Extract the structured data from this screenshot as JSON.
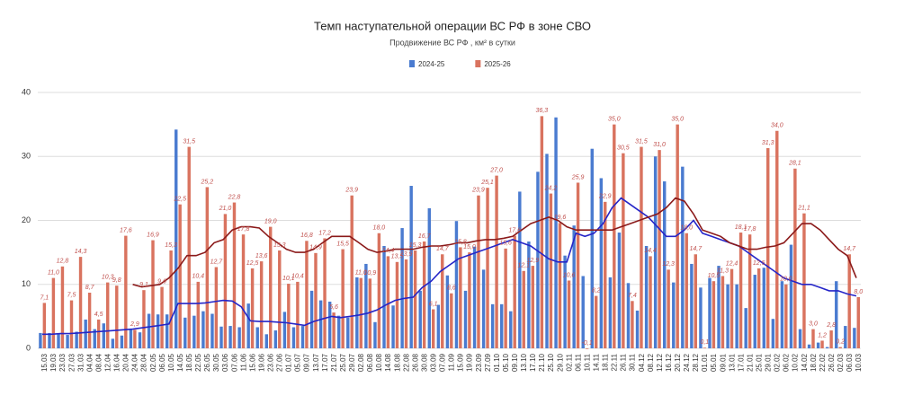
{
  "chart_data": {
    "type": "bar",
    "title": "Темп наступательной операции ВС РФ в зоне СВО",
    "subtitle": "Продвижение ВС РФ , км² в сутки",
    "categories": [
      "15.03",
      "19.03",
      "23.03",
      "27.03",
      "31.03",
      "04.04",
      "08.04",
      "12.04",
      "16.04",
      "20.04",
      "24.04",
      "28.04",
      "02.05",
      "06.05",
      "10.05",
      "14.05",
      "18.05",
      "22.05",
      "26.05",
      "30.05",
      "03.06",
      "07.06",
      "11.06",
      "15.06",
      "19.06",
      "23.06",
      "27.06",
      "01.07",
      "05.07",
      "09.07",
      "13.07",
      "17.07",
      "21.07",
      "25.07",
      "29.07",
      "02.08",
      "06.08",
      "10.08",
      "14.08",
      "18.08",
      "22.08",
      "26.08",
      "30.08",
      "03.09",
      "07.09",
      "11.09",
      "15.09",
      "19.09",
      "23.09",
      "27.09",
      "01.10",
      "05.10",
      "09.10",
      "13.10",
      "17.10",
      "21.10",
      "25.10",
      "29.10",
      "02.11",
      "06.11",
      "10.11",
      "14.11",
      "18.11",
      "22.11",
      "26.11",
      "30.11",
      "04.12",
      "08.12",
      "12.12",
      "16.12",
      "20.12",
      "24.12",
      "28.12",
      "01.01",
      "05.01",
      "09.01",
      "13.01",
      "17.01",
      "21.01",
      "25.01",
      "29.01",
      "02.02",
      "06.02",
      "10.02",
      "14.02",
      "18.02",
      "22.02",
      "26.02",
      "02.03",
      "06.03",
      "10.03"
    ],
    "series": [
      {
        "name": "2024-25",
        "type": "bar",
        "color": "#4a7bd0",
        "values": [
          2.4,
          2.4,
          2.3,
          2.1,
          2.6,
          4.5,
          3.0,
          3.9,
          1.5,
          2.0,
          3.0,
          2.5,
          5.4,
          5.3,
          5.3,
          34.2,
          4.8,
          5.1,
          5.8,
          5.4,
          3.4,
          3.5,
          3.3,
          7.0,
          3.3,
          2.2,
          2.8,
          5.7,
          3.3,
          3.5,
          9.0,
          7.5,
          7.3,
          5.1,
          4.8,
          11.1,
          13.2,
          4.1,
          16.0,
          6.7,
          18.8,
          25.4,
          9.0,
          21.9,
          6.8,
          11.4,
          19.9,
          9.0,
          15.9,
          12.3,
          6.9,
          6.9,
          5.8,
          24.5,
          16.7,
          27.6,
          30.4,
          36.1,
          14.5,
          19.2,
          11.3,
          31.2,
          26.6,
          11.1,
          18.1,
          10.2,
          5.9,
          16.0,
          30.0,
          26.1,
          10.3,
          28.4,
          13.2,
          9.5,
          11.0,
          12.9,
          10.0,
          10.0,
          6.3,
          11.5,
          12.6,
          4.6,
          10.5,
          16.2,
          3.0,
          0.6,
          0.9,
          0.2,
          10.5,
          3.5,
          3.2
        ]
      },
      {
        "name": "2025-26",
        "type": "bar",
        "color": "#d9735f",
        "values": [
          7.1,
          11.0,
          12.8,
          7.5,
          14.3,
          8.7,
          4.5,
          10.3,
          9.8,
          17.6,
          2.9,
          9.1,
          16.9,
          9.6,
          15.3,
          22.5,
          31.5,
          10.4,
          25.2,
          12.7,
          21.0,
          22.8,
          17.8,
          12.5,
          13.6,
          19.0,
          15.3,
          10.1,
          10.4,
          16.8,
          14.9,
          17.2,
          5.6,
          15.5,
          23.9,
          11.0,
          10.9,
          18.0,
          14.4,
          13.5,
          13.9,
          15.3,
          16.7,
          6.1,
          14.7,
          8.6,
          15.8,
          15.0,
          23.9,
          25.1,
          27.0,
          15.6,
          17.6,
          12.1,
          12.9,
          36.3,
          24.2,
          19.6,
          10.6,
          25.9,
          -0.1,
          8.2,
          22.9,
          35.0,
          30.5,
          7.4,
          31.5,
          14.4,
          31.0,
          12.3,
          35.0,
          18.0,
          14.7,
          0.1,
          10.5,
          11.3,
          12.4,
          18.1,
          17.8,
          12.5,
          31.3,
          34.0,
          10.0,
          28.1,
          21.1,
          3.0,
          1.2,
          2.8,
          0.2,
          14.7,
          8.0
        ],
        "value_labels": [
          "7,1",
          "11,0",
          "12,8",
          "7,5",
          "14,3",
          "8,7",
          "4,5",
          "10,3",
          "9,8",
          "17,6",
          "2,9",
          "9,1",
          "16,9",
          "9,6",
          "15,3",
          "22,5",
          "31,5",
          "10,4",
          "25,2",
          "12,7",
          "21,0",
          "22,8",
          "17,8",
          "12,5",
          "13,6",
          "19,0",
          "15,3",
          "10,1",
          "10,4",
          "16,8",
          "14,9",
          "17,2",
          "5,6",
          "15,5",
          "23,9",
          "11,0",
          "10,9",
          "18,0",
          "14,4",
          "13,5",
          "13,9",
          "15,3",
          "16,7",
          "6,1",
          "14,7",
          "8,6",
          "15,8",
          "15,0",
          "23,9",
          "25,1",
          "27,0",
          "15,6",
          "17,6",
          "12,1",
          "12,9",
          "36,3",
          "24,2",
          "19,6",
          "10,6",
          "25,9",
          "-0,1",
          "8,2",
          "22,9",
          "35,0",
          "30,5",
          "7,4",
          "31,5",
          "14,4",
          "31,0",
          "12,3",
          "35,0",
          "18,0",
          "14,7",
          "0,1",
          "10,5",
          "11,3",
          "12,4",
          "18,1",
          "17,8",
          "12,5",
          "31,3",
          "34,0",
          "10,0",
          "28,1",
          "21,1",
          "3,0",
          "1,2",
          "2,8",
          "0,2",
          "14,7",
          "8,0"
        ]
      },
      {
        "type": "line",
        "color": "#2525c8",
        "values": [
          2.2,
          2.2,
          2.3,
          2.3,
          2.4,
          2.5,
          2.6,
          2.7,
          2.8,
          2.9,
          3.0,
          3.2,
          3.4,
          3.6,
          3.8,
          7.0,
          7.0,
          7.0,
          7.1,
          7.3,
          7.5,
          7.4,
          6.5,
          4.3,
          4.2,
          4.2,
          4.1,
          4.0,
          3.8,
          3.6,
          4.2,
          4.6,
          5.0,
          4.8,
          5.0,
          5.2,
          5.5,
          6.0,
          6.8,
          7.5,
          7.8,
          8.0,
          9.5,
          10.5,
          12.0,
          13.0,
          14.0,
          14.5,
          15.0,
          15.5,
          16.0,
          16.5,
          17.0,
          16.5,
          16.0,
          15.0,
          14.0,
          13.5,
          13.5,
          18.0,
          17.5,
          18.0,
          19.5,
          22.0,
          23.5,
          22.5,
          21.5,
          20.5,
          19.0,
          17.5,
          17.5,
          18.5,
          20.0,
          18.0,
          17.5,
          17.0,
          16.5,
          16.0,
          15.0,
          14.0,
          13.0,
          12.0,
          11.0,
          10.5,
          10.0,
          10.0,
          9.5,
          9.0,
          9.0,
          8.5,
          8.2
        ]
      },
      {
        "type": "line",
        "color": "#8b1a1a",
        "values": [
          null,
          null,
          null,
          null,
          null,
          null,
          null,
          null,
          null,
          null,
          10.0,
          9.6,
          9.8,
          10.0,
          11.0,
          12.5,
          14.5,
          14.5,
          15.0,
          16.5,
          17.0,
          18.5,
          19.0,
          19.0,
          18.8,
          17.5,
          16.5,
          15.5,
          15.0,
          15.0,
          15.5,
          16.5,
          17.5,
          17.5,
          17.5,
          16.5,
          15.5,
          15.0,
          15.2,
          15.5,
          15.5,
          15.5,
          15.8,
          16.0,
          16.0,
          16.2,
          16.5,
          16.5,
          16.8,
          17.0,
          17.0,
          17.2,
          17.5,
          18.5,
          19.5,
          20.0,
          20.5,
          20.0,
          19.0,
          18.5,
          18.5,
          18.5,
          18.5,
          18.5,
          19.0,
          19.5,
          20.0,
          20.5,
          21.0,
          22.0,
          23.5,
          23.0,
          21.0,
          18.5,
          18.0,
          17.5,
          16.5,
          16.0,
          15.5,
          15.5,
          15.8,
          16.0,
          16.5,
          18.0,
          19.5,
          19.5,
          18.5,
          17.0,
          15.5,
          14.5,
          11.0
        ]
      }
    ],
    "ylim": [
      0,
      40
    ],
    "yticks": [
      0,
      10,
      20,
      30,
      40
    ],
    "grid": true
  }
}
